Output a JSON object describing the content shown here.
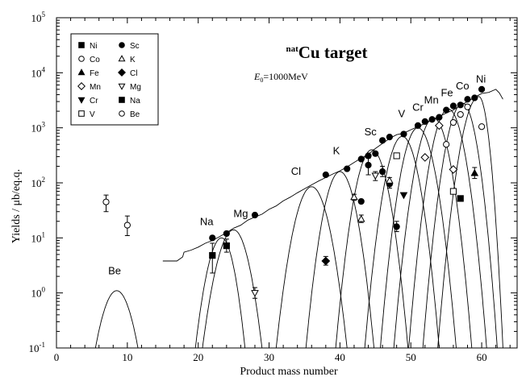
{
  "chart_data": {
    "type": "scatter",
    "title": "natCu target",
    "title_parts": {
      "sup": "nat",
      "main": "Cu target"
    },
    "subtitle": "E0=1000MeV",
    "subtitle_parts": {
      "symbol": "E",
      "sub": "0",
      "rest": "=1000MeV"
    },
    "xlabel": "Product mass number",
    "ylabel": "Yields / μb/eq.q.",
    "x_scale": "linear",
    "y_scale": "log",
    "xlim": [
      0,
      65
    ],
    "ylim": [
      0.1,
      100000
    ],
    "x_ticks": [
      0,
      10,
      20,
      30,
      40,
      50,
      60
    ],
    "y_ticks": [
      {
        "value": 0.1,
        "label": "10",
        "exp": "-1"
      },
      {
        "value": 1,
        "label": "10",
        "exp": "0"
      },
      {
        "value": 10,
        "label": "10",
        "exp": "1"
      },
      {
        "value": 100,
        "label": "10",
        "exp": "2"
      },
      {
        "value": 1000,
        "label": "10",
        "exp": "3"
      },
      {
        "value": 10000,
        "label": "10",
        "exp": "4"
      },
      {
        "value": 100000,
        "label": "10",
        "exp": "5"
      }
    ],
    "grid": false,
    "legend_position": "top-left",
    "legend_rows": [
      {
        "left": {
          "symbol": "square-filled",
          "label": "Ni"
        },
        "right": {
          "symbol": "circle-filled",
          "label": "Sc"
        }
      },
      {
        "left": {
          "symbol": "circle-open",
          "label": "Co"
        },
        "right": {
          "symbol": "triangle-up-open",
          "label": "K"
        }
      },
      {
        "left": {
          "symbol": "triangle-up-filled",
          "label": "Fe"
        },
        "right": {
          "symbol": "diamond-filled",
          "label": "Cl"
        }
      },
      {
        "left": {
          "symbol": "diamond-open",
          "label": "Mn"
        },
        "right": {
          "symbol": "triangle-down-open",
          "label": "Mg"
        }
      },
      {
        "left": {
          "symbol": "triangle-down-filled",
          "label": "Cr"
        },
        "right": {
          "symbol": "square-filled",
          "label": "Na"
        }
      },
      {
        "left": {
          "symbol": "square-open",
          "label": "V"
        },
        "right": {
          "symbol": "circle-open",
          "label": "Be"
        }
      }
    ],
    "element_labels": [
      {
        "text": "Be",
        "x": 8.2,
        "y": 2.2
      },
      {
        "text": "Na",
        "x": 21.2,
        "y": 17
      },
      {
        "text": "Mg",
        "x": 26.0,
        "y": 24
      },
      {
        "text": "Cl",
        "x": 33.8,
        "y": 140
      },
      {
        "text": "K",
        "x": 39.5,
        "y": 330
      },
      {
        "text": "Sc",
        "x": 44.3,
        "y": 730
      },
      {
        "text": "V",
        "x": 48.7,
        "y": 1550
      },
      {
        "text": "Cr",
        "x": 51.0,
        "y": 2050
      },
      {
        "text": "Mn",
        "x": 52.9,
        "y": 2780
      },
      {
        "text": "Fe",
        "x": 55.1,
        "y": 3750
      },
      {
        "text": "Co",
        "x": 57.3,
        "y": 5000
      },
      {
        "text": "Ni",
        "x": 59.9,
        "y": 6600
      }
    ],
    "series": [
      {
        "name": "Ni",
        "symbol": "square-filled",
        "points": [
          [
            57,
            52
          ]
        ]
      },
      {
        "name": "Co",
        "symbol": "circle-open",
        "points": [
          [
            55,
            500
          ],
          [
            56,
            1250
          ],
          [
            57,
            1750
          ],
          [
            58,
            2400
          ],
          [
            60,
            1050
          ]
        ]
      },
      {
        "name": "Fe",
        "symbol": "triangle-up-filled",
        "points": [
          [
            59,
            150
          ]
        ]
      },
      {
        "name": "Mn",
        "symbol": "diamond-open",
        "points": [
          [
            52,
            290
          ],
          [
            54,
            1100
          ],
          [
            56,
            175
          ]
        ]
      },
      {
        "name": "Cr",
        "symbol": "triangle-down-filled",
        "points": [
          [
            49,
            60
          ]
        ]
      },
      {
        "name": "V",
        "symbol": "square-open",
        "points": [
          [
            48,
            310
          ],
          [
            56,
            70
          ]
        ]
      },
      {
        "name": "Sc",
        "symbol": "circle-filled",
        "points": [
          [
            22,
            10
          ],
          [
            24,
            12
          ],
          [
            28,
            26
          ],
          [
            38,
            140
          ],
          [
            41,
            180
          ],
          [
            43,
            270
          ],
          [
            44,
            310
          ],
          [
            45,
            340
          ],
          [
            46,
            590
          ],
          [
            47,
            680
          ],
          [
            49,
            770
          ],
          [
            51,
            1100
          ],
          [
            52,
            1300
          ],
          [
            53,
            1420
          ],
          [
            54,
            1550
          ],
          [
            55,
            2100
          ],
          [
            56,
            2500
          ],
          [
            57,
            2600
          ],
          [
            58,
            3300
          ],
          [
            59,
            3500
          ],
          [
            60,
            5000
          ],
          [
            43,
            46
          ],
          [
            44,
            210
          ],
          [
            46,
            160
          ],
          [
            47,
            95
          ],
          [
            48,
            16
          ]
        ]
      },
      {
        "name": "K",
        "symbol": "triangle-up-open",
        "points": [
          [
            42,
            55
          ],
          [
            43,
            22
          ],
          [
            47,
            110
          ]
        ]
      },
      {
        "name": "Cl",
        "symbol": "diamond-filled",
        "points": [
          [
            38,
            3.8
          ]
        ]
      },
      {
        "name": "Mg",
        "symbol": "triangle-down-open",
        "points": [
          [
            28,
            1.0
          ],
          [
            45,
            135
          ]
        ]
      },
      {
        "name": "Na",
        "symbol": "square-filled",
        "points": [
          [
            22,
            4.8
          ],
          [
            24,
            7.2
          ]
        ]
      },
      {
        "name": "Be",
        "symbol": "circle-open",
        "points": [
          [
            7,
            45
          ],
          [
            10,
            17
          ]
        ]
      }
    ],
    "error_bars": [
      {
        "x": 7,
        "lo": 30,
        "hi": 60
      },
      {
        "x": 10,
        "lo": 11,
        "hi": 25
      },
      {
        "x": 22,
        "lo": 2.3,
        "hi": 8
      },
      {
        "x": 24,
        "lo": 5.5,
        "hi": 9.5
      },
      {
        "x": 28,
        "lo": 0.8,
        "hi": 1.25
      },
      {
        "x": 38,
        "lo": 3.2,
        "hi": 4.6
      },
      {
        "x": 42,
        "lo": 48,
        "hi": 62
      },
      {
        "x": 43,
        "lo": 19,
        "hi": 26
      },
      {
        "x": 44,
        "lo": 140,
        "hi": 280
      },
      {
        "x": 45,
        "lo": 110,
        "hi": 160
      },
      {
        "x": 46,
        "lo": 130,
        "hi": 200
      },
      {
        "x": 47,
        "lo": 80,
        "hi": 125
      },
      {
        "x": 48,
        "lo": 13,
        "hi": 20
      },
      {
        "x": 59,
        "lo": 120,
        "hi": 190
      }
    ],
    "envelope_curve": [
      [
        15,
        3.8
      ],
      [
        17,
        3.8
      ],
      [
        17.8,
        4.5
      ],
      [
        18,
        5.5
      ],
      [
        19,
        6
      ],
      [
        20,
        6.8
      ],
      [
        21,
        8
      ],
      [
        22,
        9
      ],
      [
        23,
        10.5
      ],
      [
        24,
        12.5
      ],
      [
        25,
        15
      ],
      [
        26,
        17
      ],
      [
        27,
        21
      ],
      [
        28,
        24
      ],
      [
        29,
        27
      ],
      [
        30,
        33
      ],
      [
        31,
        38
      ],
      [
        32,
        47
      ],
      [
        33,
        55
      ],
      [
        34,
        66
      ],
      [
        35,
        78
      ],
      [
        36,
        92
      ],
      [
        37,
        108
      ],
      [
        38,
        125
      ],
      [
        39,
        145
      ],
      [
        40,
        165
      ],
      [
        41,
        195
      ],
      [
        42,
        235
      ],
      [
        43,
        280
      ],
      [
        44,
        330
      ],
      [
        45,
        420
      ],
      [
        46,
        520
      ],
      [
        47,
        640
      ],
      [
        48,
        750
      ],
      [
        49,
        800
      ],
      [
        50,
        920
      ],
      [
        51,
        1050
      ],
      [
        52,
        1200
      ],
      [
        53,
        1420
      ],
      [
        54,
        1600
      ],
      [
        55,
        1850
      ],
      [
        56,
        2100
      ],
      [
        57,
        2550
      ],
      [
        58,
        3000
      ],
      [
        59,
        3600
      ],
      [
        60,
        4200
      ],
      [
        61,
        4400
      ],
      [
        62,
        5000
      ],
      [
        62.5,
        4300
      ],
      [
        63,
        3300
      ]
    ],
    "isotope_distributions": [
      {
        "peak": 8.5,
        "height": 1.1,
        "from": 5.5,
        "to": 11.5
      },
      {
        "peak": 23.3,
        "height": 10,
        "from": 19.6,
        "to": 26.6
      },
      {
        "peak": 25.0,
        "height": 14,
        "from": 20.6,
        "to": 29.0
      },
      {
        "peak": 36.0,
        "height": 85,
        "from": 31.0,
        "to": 41.0
      },
      {
        "peak": 40.0,
        "height": 160,
        "from": 35.2,
        "to": 44.8
      },
      {
        "peak": 44.5,
        "height": 400,
        "from": 39.4,
        "to": 49.6
      },
      {
        "peak": 48.8,
        "height": 700,
        "from": 43.5,
        "to": 54.0
      },
      {
        "peak": 51.0,
        "height": 1000,
        "from": 45.7,
        "to": 56.4
      },
      {
        "peak": 53.2,
        "height": 1500,
        "from": 47.6,
        "to": 58.6
      },
      {
        "peak": 55.3,
        "height": 2200,
        "from": 49.7,
        "to": 60.7
      },
      {
        "peak": 57.3,
        "height": 2800,
        "from": 51.7,
        "to": 62.2
      },
      {
        "peak": 59.6,
        "height": 3700,
        "from": 53.8,
        "to": 63.0
      }
    ]
  }
}
